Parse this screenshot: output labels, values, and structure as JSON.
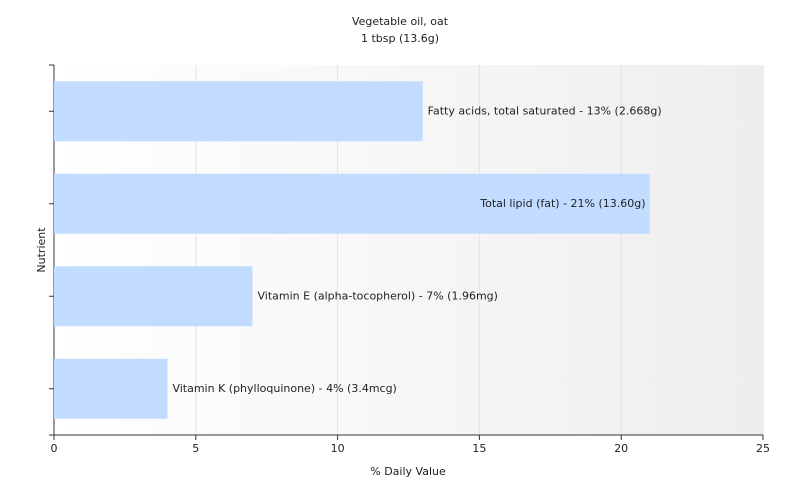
{
  "chart_data": {
    "type": "bar",
    "orientation": "horizontal",
    "title": "Vegetable oil, oat",
    "subtitle": "1 tbsp (13.6g)",
    "x_label": "% Daily Value",
    "y_label": "Nutrient",
    "values": [
      13,
      21,
      7,
      4
    ],
    "value_labels": [
      "Fatty acids, total saturated - 13% (2.668g)",
      "Total lipid (fat) - 21% (13.60g)",
      "Vitamin E (alpha-tocopherol) - 7% (1.96mg)",
      "Vitamin K (phylloquinone) - 4% (3.4mcg)"
    ],
    "color": "#c2dcff",
    "xlim": [
      0,
      25
    ],
    "xticks": [
      0,
      5,
      10,
      15,
      20,
      25
    ],
    "grid": true
  }
}
